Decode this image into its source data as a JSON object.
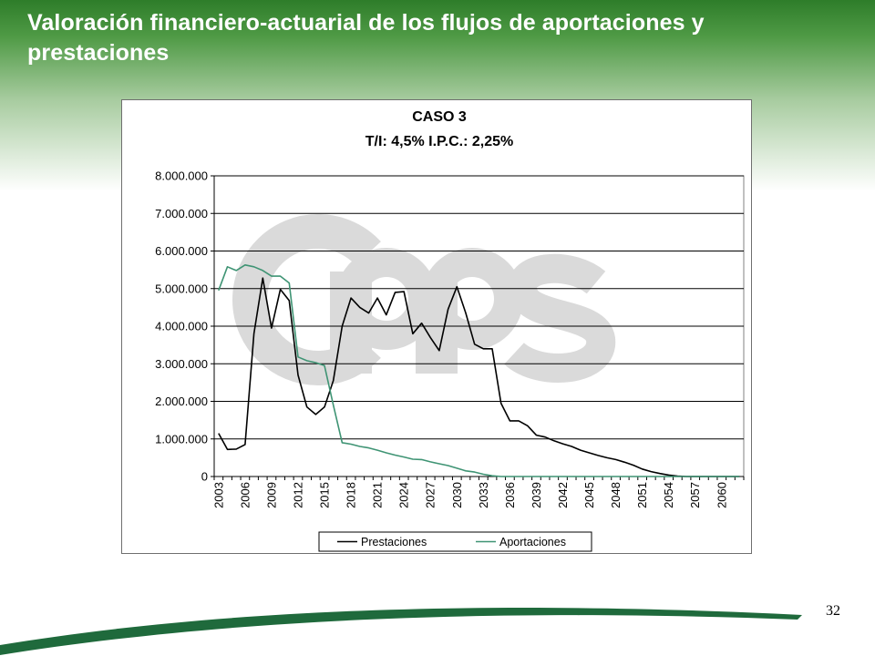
{
  "slide": {
    "title": "Valoración financiero-actuarial de los flujos de aportaciones y prestaciones",
    "page_number": "32",
    "watermark_logo": "CPPS",
    "colors": {
      "header_green": "#2e7d2a",
      "swoosh_green": "#1f6a3c",
      "watermark_gray": "#dadada"
    }
  },
  "chart_data": {
    "type": "line",
    "title_lines": [
      "CASO 3",
      "T/I: 4,5% I.P.C.: 2,25%"
    ],
    "xlabel": "",
    "ylabel": "",
    "x_start": 2003,
    "x_end": 2062,
    "x_tick_labels": [
      "2003",
      "2006",
      "2009",
      "2012",
      "2015",
      "2018",
      "2021",
      "2024",
      "2027",
      "2030",
      "2033",
      "2036",
      "2039",
      "2042",
      "2045",
      "2048",
      "2051",
      "2054",
      "2057",
      "2060"
    ],
    "ylim": [
      0,
      8000000
    ],
    "y_tick_labels": [
      "0",
      "1.000.000",
      "2.000.000",
      "3.000.000",
      "4.000.000",
      "5.000.000",
      "6.000.000",
      "7.000.000",
      "8.000.000"
    ],
    "grid": "horizontal",
    "legend_position": "bottom",
    "series": [
      {
        "name": "Prestaciones",
        "color": "#000000",
        "values": [
          1150000,
          720000,
          730000,
          850000,
          3800000,
          5280000,
          3950000,
          4980000,
          4680000,
          2700000,
          1850000,
          1650000,
          1850000,
          2550000,
          4000000,
          4750000,
          4500000,
          4350000,
          4750000,
          4300000,
          4900000,
          4920000,
          3800000,
          4080000,
          3700000,
          3350000,
          4450000,
          5050000,
          4350000,
          3520000,
          3400000,
          3400000,
          1950000,
          1480000,
          1480000,
          1350000,
          1100000,
          1050000,
          950000,
          870000,
          800000,
          700000,
          630000,
          560000,
          500000,
          450000,
          380000,
          300000,
          200000,
          130000,
          80000,
          40000,
          10000,
          0,
          0,
          0,
          0,
          0,
          0,
          0
        ]
      },
      {
        "name": "Aportaciones",
        "color": "#3f9474",
        "values": [
          4950000,
          5580000,
          5480000,
          5630000,
          5580000,
          5480000,
          5330000,
          5330000,
          5150000,
          3180000,
          3080000,
          3030000,
          2950000,
          1900000,
          900000,
          860000,
          800000,
          760000,
          700000,
          630000,
          570000,
          520000,
          460000,
          450000,
          390000,
          340000,
          290000,
          220000,
          150000,
          120000,
          60000,
          20000,
          0,
          0,
          0,
          0,
          0,
          0,
          0,
          0,
          0,
          0,
          0,
          0,
          0,
          0,
          0,
          0,
          0,
          0,
          0,
          0,
          0,
          0,
          0,
          0,
          0,
          0,
          0,
          0
        ]
      }
    ]
  }
}
